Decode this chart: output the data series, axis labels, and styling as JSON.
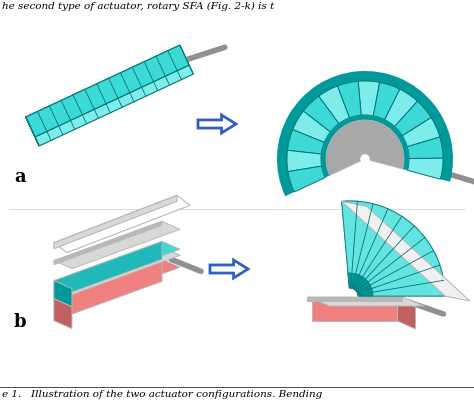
{
  "background_color": "#ffffff",
  "text_top": "he second type of actuator, rotary SFA (Fig. 2-k) is t",
  "label_a": "a",
  "label_b": "b",
  "caption": "e 1.   Illustration of the two actuator configurations. Bending",
  "cyan_color": "#3DD9D6",
  "cyan_dark": "#009999",
  "cyan_light": "#7EECEA",
  "cyan_mid": "#20B8B8",
  "red_color": "#F08080",
  "red_dark": "#C06060",
  "gray_light": "#D8D8D8",
  "gray_mid": "#B8B8B8",
  "white_panel": "#F0F0F0",
  "arrow_fill": "#ffffff",
  "arrow_edge": "#3060C0",
  "wire_color": "#909090",
  "seg_line_color": "#007777",
  "inner_hub_color": "#A8A8A8"
}
